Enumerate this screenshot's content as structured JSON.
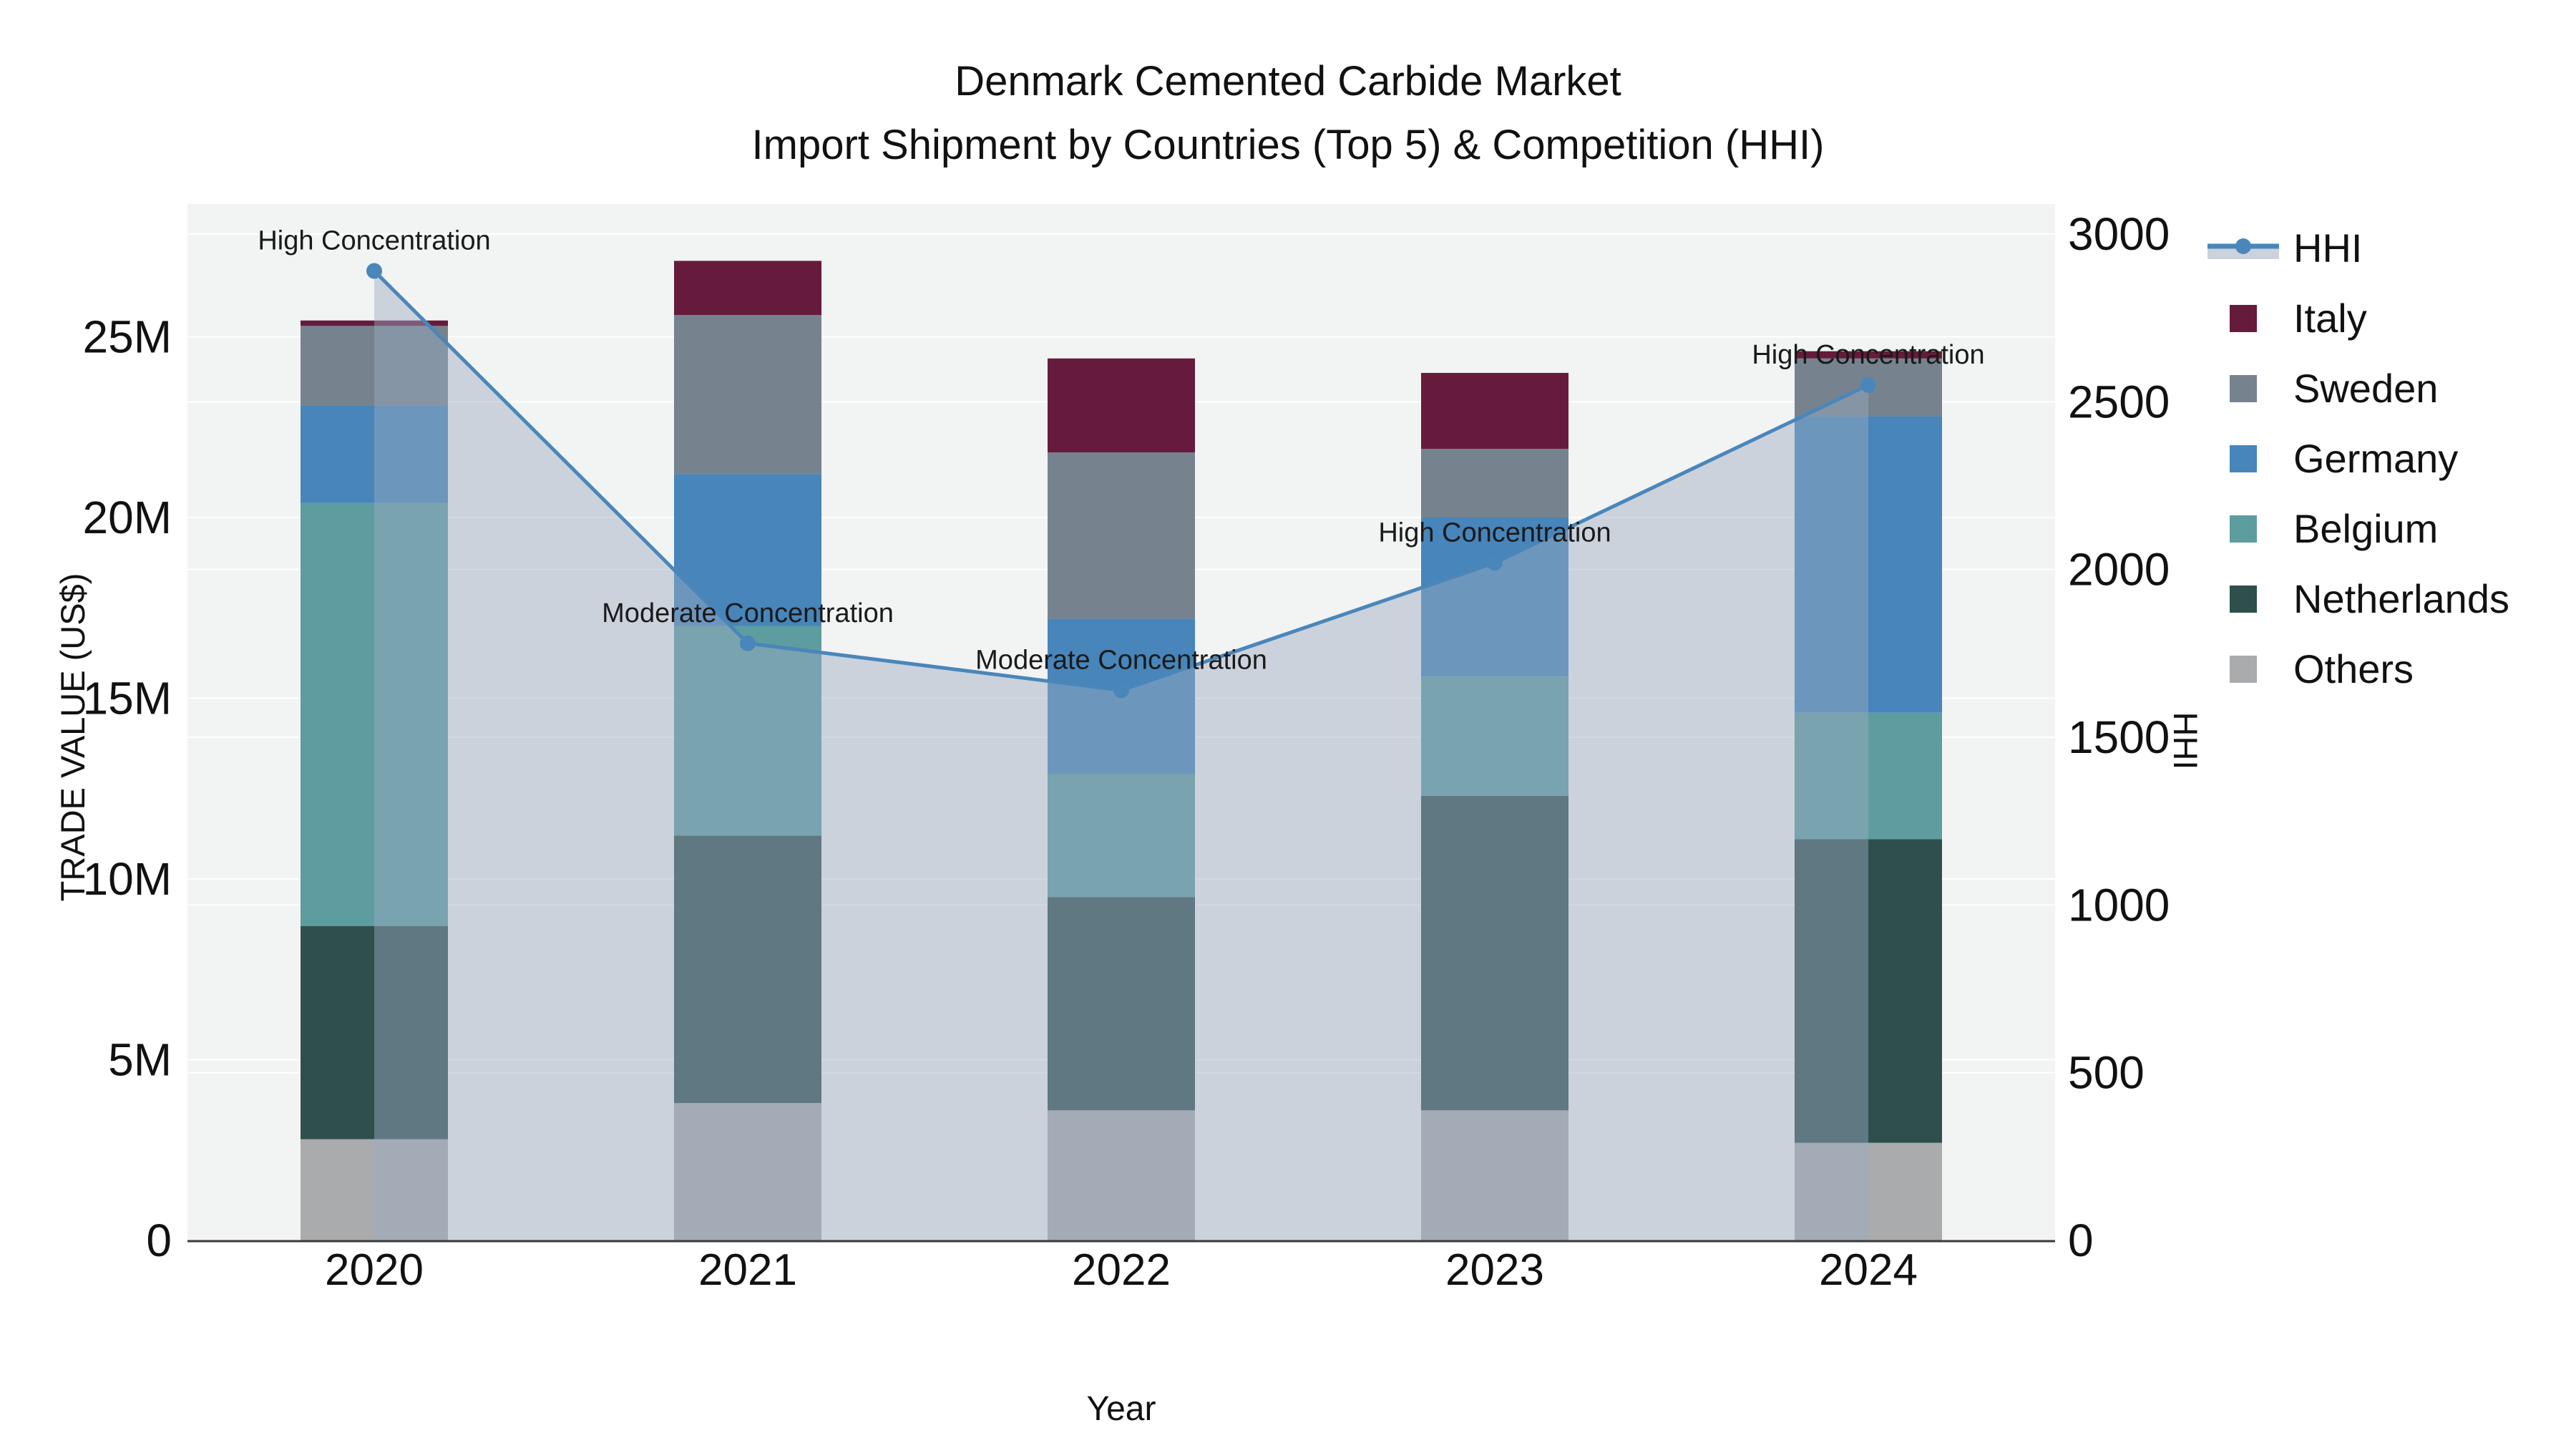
{
  "title": {
    "line1": "Denmark Cemented Carbide Market",
    "line2": "Import Shipment by Countries (Top 5) & Competition (HHI)"
  },
  "chart_data": {
    "type": "bar+line",
    "subtype": "stacked-bars-with-secondary-axis-line-and-area",
    "years": [
      "2020",
      "2021",
      "2022",
      "2023",
      "2024"
    ],
    "xlabel": "Year",
    "ylabel_left": "TRADE VALUE (US$)",
    "ylabel_right": "HHI",
    "yticks_left": [
      "0",
      "5M",
      "10M",
      "15M",
      "20M",
      "25M"
    ],
    "yticks_left_values_musd": [
      0,
      5,
      10,
      15,
      20,
      25
    ],
    "ylim_left_musd": [
      0,
      28.7
    ],
    "yticks_right": [
      "0",
      "500",
      "1000",
      "1500",
      "2000",
      "2500",
      "3000"
    ],
    "ylim_right": [
      0,
      3000
    ],
    "grid": true,
    "legend_position": "right-outside",
    "plot_bg_color": "#f2f3f3",
    "gridline_color": "#ffffff",
    "axisline_color": "#3a3a3a",
    "stack_order_bottom_to_top": [
      "Others",
      "Netherlands",
      "Belgium",
      "Germany",
      "Sweden",
      "Italy"
    ],
    "series": [
      {
        "name": "Others",
        "color": "#a9abad",
        "values_musd": [
          2.8,
          3.8,
          3.6,
          3.6,
          2.7
        ]
      },
      {
        "name": "Netherlands",
        "color": "#2f4f4d",
        "values_musd": [
          5.9,
          7.4,
          5.9,
          8.7,
          8.4
        ]
      },
      {
        "name": "Belgium",
        "color": "#5d9da0",
        "values_musd": [
          11.7,
          5.8,
          3.4,
          3.3,
          3.5
        ]
      },
      {
        "name": "Germany",
        "color": "#4785ba",
        "values_musd": [
          2.7,
          4.2,
          4.3,
          4.4,
          8.2
        ]
      },
      {
        "name": "Sweden",
        "color": "#76838f",
        "values_musd": [
          2.2,
          4.4,
          4.6,
          1.9,
          1.6
        ]
      },
      {
        "name": "Italy",
        "color": "#661b3c",
        "values_musd": [
          0.15,
          1.5,
          2.6,
          2.1,
          0.2
        ]
      }
    ],
    "totals_musd": [
      25.45,
      27.1,
      24.4,
      24.0,
      24.6
    ],
    "hhi": {
      "name": "HHI",
      "line_color": "#4a86ba",
      "marker_color": "#4a86ba",
      "area_fill_color": "rgba(156,170,192,0.45)",
      "values": [
        2890,
        1780,
        1640,
        2020,
        2550
      ]
    },
    "annotations": [
      {
        "year": "2020",
        "text": "High Concentration"
      },
      {
        "year": "2021",
        "text": "Moderate Concentration"
      },
      {
        "year": "2022",
        "text": "Moderate Concentration"
      },
      {
        "year": "2023",
        "text": "High Concentration"
      },
      {
        "year": "2024",
        "text": "High Concentration"
      }
    ]
  },
  "legend": {
    "items": [
      {
        "label": "HHI",
        "type": "line",
        "color": "#4a86ba",
        "band_color": "#ccd2dc"
      },
      {
        "label": "Italy",
        "type": "swatch",
        "color": "#661b3c"
      },
      {
        "label": "Sweden",
        "type": "swatch",
        "color": "#76838f"
      },
      {
        "label": "Germany",
        "type": "swatch",
        "color": "#4785ba"
      },
      {
        "label": "Belgium",
        "type": "swatch",
        "color": "#5d9da0"
      },
      {
        "label": "Netherlands",
        "type": "swatch",
        "color": "#2f4f4d"
      },
      {
        "label": "Others",
        "type": "swatch",
        "color": "#a9abad"
      }
    ]
  }
}
